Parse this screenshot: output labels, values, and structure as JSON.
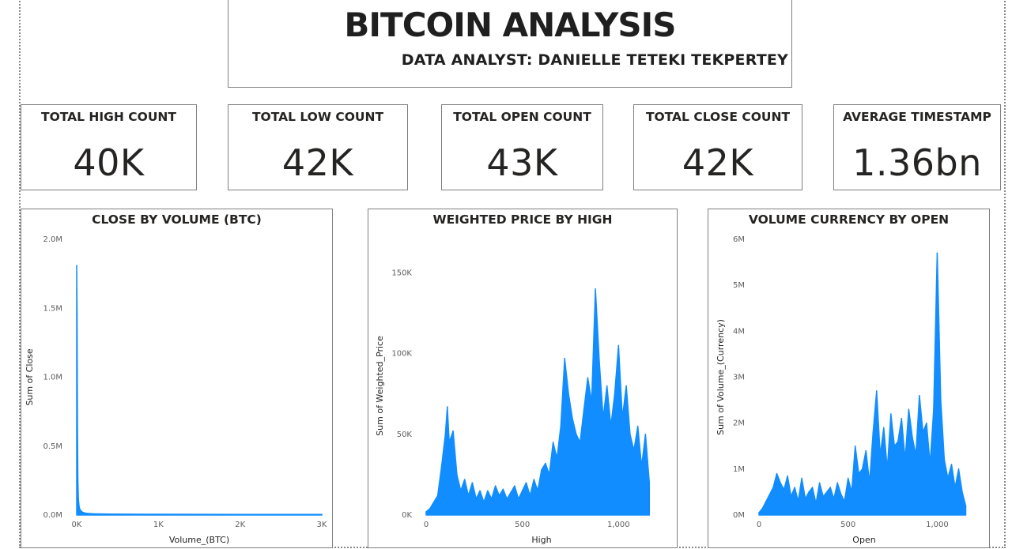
{
  "header": {
    "title": "BITCOIN ANALYSIS",
    "subtitle": "DATA ANALYST: DANIELLE TETEKI TEKPERTEY"
  },
  "kpis": [
    {
      "label": "TOTAL HIGH COUNT",
      "value": "40K"
    },
    {
      "label": "TOTAL LOW COUNT",
      "value": "42K"
    },
    {
      "label": "TOTAL OPEN COUNT",
      "value": "43K"
    },
    {
      "label": "TOTAL CLOSE COUNT",
      "value": "42K"
    },
    {
      "label": "AVERAGE TIMESTAMP",
      "value": "1.36bn"
    }
  ],
  "colors": {
    "series": "#118DFF",
    "border": "#7f7f7f"
  },
  "chart_data": [
    {
      "type": "area",
      "title": "CLOSE BY VOLUME (BTC)",
      "xlabel": "Volume_(BTC)",
      "ylabel": "Sum of Close",
      "xlim": [
        0,
        3000
      ],
      "ylim": [
        0,
        2000000
      ],
      "xticks": [
        {
          "v": 0,
          "label": "0K"
        },
        {
          "v": 1000,
          "label": "1K"
        },
        {
          "v": 2000,
          "label": "2K"
        },
        {
          "v": 3000,
          "label": "3K"
        }
      ],
      "yticks": [
        {
          "v": 0,
          "label": "0.0M"
        },
        {
          "v": 500000,
          "label": "0.5M"
        },
        {
          "v": 1000000,
          "label": "1.0M"
        },
        {
          "v": 1500000,
          "label": "1.5M"
        },
        {
          "v": 2000000,
          "label": "2.0M"
        }
      ],
      "x": [
        0,
        5,
        10,
        15,
        20,
        30,
        40,
        60,
        80,
        120,
        200,
        400,
        800,
        1500,
        2200,
        3000
      ],
      "y": [
        1810000,
        1450000,
        620000,
        260000,
        120000,
        60000,
        40000,
        25000,
        18000,
        12000,
        9000,
        7000,
        6000,
        5000,
        4500,
        4000
      ]
    },
    {
      "type": "area",
      "title": "WEIGHTED PRICE BY HIGH",
      "xlabel": "High",
      "ylabel": "Sum of Weighted_Price",
      "xlim": [
        0,
        1200
      ],
      "ylim": [
        0,
        160000
      ],
      "xticks": [
        {
          "v": 0,
          "label": "0"
        },
        {
          "v": 500,
          "label": "500"
        },
        {
          "v": 1000,
          "label": "1,000"
        }
      ],
      "yticks": [
        {
          "v": 0,
          "label": "0K"
        },
        {
          "v": 50000,
          "label": "50K"
        },
        {
          "v": 100000,
          "label": "100K"
        },
        {
          "v": 150000,
          "label": "150K"
        }
      ],
      "x": [
        0,
        20,
        40,
        60,
        80,
        100,
        110,
        120,
        140,
        160,
        180,
        200,
        220,
        240,
        260,
        280,
        300,
        320,
        340,
        360,
        380,
        400,
        420,
        440,
        460,
        480,
        500,
        520,
        540,
        560,
        580,
        600,
        620,
        640,
        660,
        680,
        700,
        720,
        740,
        760,
        780,
        800,
        820,
        840,
        860,
        880,
        900,
        920,
        940,
        960,
        980,
        1000,
        1020,
        1040,
        1060,
        1080,
        1100,
        1120,
        1140,
        1160
      ],
      "y": [
        2000,
        4000,
        8000,
        12000,
        30000,
        50000,
        67000,
        45000,
        52000,
        25000,
        15000,
        22000,
        12000,
        20000,
        10000,
        15000,
        8000,
        15000,
        10000,
        18000,
        12000,
        16000,
        10000,
        14000,
        18000,
        10000,
        15000,
        20000,
        12000,
        22000,
        15000,
        28000,
        32000,
        25000,
        45000,
        35000,
        55000,
        97000,
        75000,
        60000,
        50000,
        45000,
        65000,
        85000,
        70000,
        140000,
        95000,
        60000,
        80000,
        55000,
        75000,
        105000,
        60000,
        80000,
        50000,
        40000,
        55000,
        30000,
        50000,
        20000
      ]
    },
    {
      "type": "area",
      "title": "VOLUME CURRENCY BY OPEN",
      "xlabel": "Open",
      "ylabel": "Sum of Volume_(Currency)",
      "xlim": [
        0,
        1180
      ],
      "ylim": [
        0,
        6000000
      ],
      "xticks": [
        {
          "v": 0,
          "label": "0"
        },
        {
          "v": 500,
          "label": "500"
        },
        {
          "v": 1000,
          "label": "1,000"
        }
      ],
      "yticks": [
        {
          "v": 0,
          "label": "0M"
        },
        {
          "v": 1000000,
          "label": "1M"
        },
        {
          "v": 2000000,
          "label": "2M"
        },
        {
          "v": 3000000,
          "label": "3M"
        },
        {
          "v": 4000000,
          "label": "4M"
        },
        {
          "v": 5000000,
          "label": "5M"
        },
        {
          "v": 6000000,
          "label": "6M"
        }
      ],
      "x": [
        0,
        20,
        40,
        60,
        80,
        100,
        120,
        140,
        160,
        180,
        200,
        220,
        240,
        260,
        280,
        300,
        320,
        340,
        360,
        380,
        400,
        420,
        440,
        460,
        480,
        500,
        520,
        540,
        560,
        580,
        600,
        620,
        640,
        660,
        680,
        700,
        720,
        740,
        760,
        780,
        800,
        820,
        840,
        860,
        880,
        900,
        920,
        940,
        960,
        980,
        1000,
        1020,
        1040,
        1060,
        1080,
        1100,
        1120,
        1140,
        1160
      ],
      "y": [
        50000,
        150000,
        300000,
        450000,
        600000,
        900000,
        700000,
        550000,
        850000,
        400000,
        600000,
        300000,
        800000,
        350000,
        500000,
        600000,
        250000,
        700000,
        400000,
        500000,
        600000,
        350000,
        700000,
        450000,
        300000,
        800000,
        500000,
        1500000,
        900000,
        1000000,
        1400000,
        700000,
        1800000,
        2700000,
        1300000,
        1900000,
        1000000,
        2200000,
        1500000,
        1600000,
        2100000,
        1200000,
        2300000,
        1700000,
        1300000,
        2600000,
        1800000,
        2000000,
        1100000,
        2300000,
        5700000,
        2500000,
        1200000,
        800000,
        1100000,
        600000,
        1000000,
        500000,
        200000
      ]
    }
  ]
}
